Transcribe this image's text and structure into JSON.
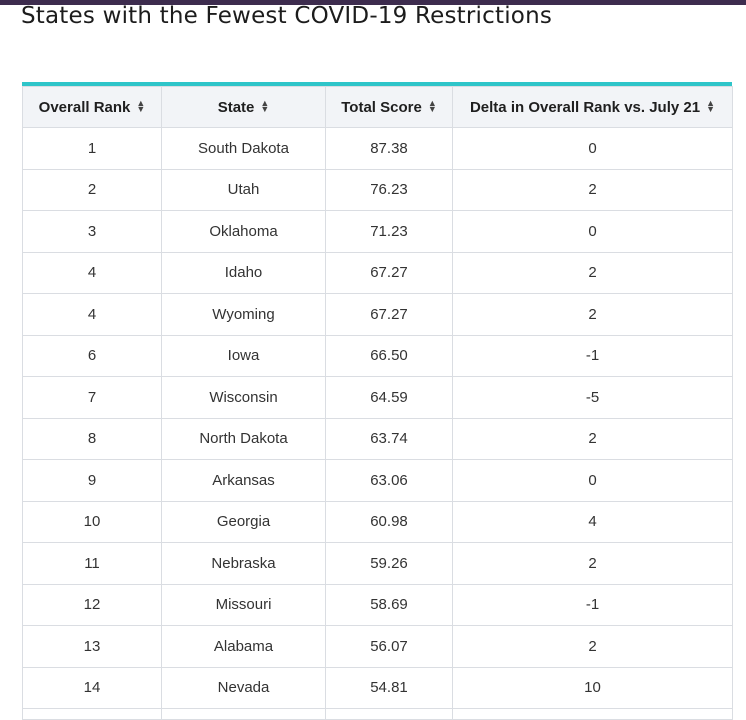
{
  "page": {
    "title": "States with the Fewest COVID-19 Restrictions"
  },
  "colors": {
    "top_bar": "#3d2c4e",
    "table_accent": "#2ec5c9",
    "header_bg": "#f2f4f7"
  },
  "table": {
    "sort_icon": "sort-updown-icon",
    "columns": [
      {
        "label": "Overall Rank"
      },
      {
        "label": "State"
      },
      {
        "label": "Total Score"
      },
      {
        "label": "Delta in Overall Rank vs. July 21"
      }
    ],
    "rows": [
      {
        "rank": "1",
        "state": "South Dakota",
        "score": "87.38",
        "delta": "0"
      },
      {
        "rank": "2",
        "state": "Utah",
        "score": "76.23",
        "delta": "2"
      },
      {
        "rank": "3",
        "state": "Oklahoma",
        "score": "71.23",
        "delta": "0"
      },
      {
        "rank": "4",
        "state": "Idaho",
        "score": "67.27",
        "delta": "2"
      },
      {
        "rank": "4",
        "state": "Wyoming",
        "score": "67.27",
        "delta": "2"
      },
      {
        "rank": "6",
        "state": "Iowa",
        "score": "66.50",
        "delta": "-1"
      },
      {
        "rank": "7",
        "state": "Wisconsin",
        "score": "64.59",
        "delta": "-5"
      },
      {
        "rank": "8",
        "state": "North Dakota",
        "score": "63.74",
        "delta": "2"
      },
      {
        "rank": "9",
        "state": "Arkansas",
        "score": "63.06",
        "delta": "0"
      },
      {
        "rank": "10",
        "state": "Georgia",
        "score": "60.98",
        "delta": "4"
      },
      {
        "rank": "11",
        "state": "Nebraska",
        "score": "59.26",
        "delta": "2"
      },
      {
        "rank": "12",
        "state": "Missouri",
        "score": "58.69",
        "delta": "-1"
      },
      {
        "rank": "13",
        "state": "Alabama",
        "score": "56.07",
        "delta": "2"
      },
      {
        "rank": "14",
        "state": "Nevada",
        "score": "54.81",
        "delta": "10"
      }
    ]
  }
}
